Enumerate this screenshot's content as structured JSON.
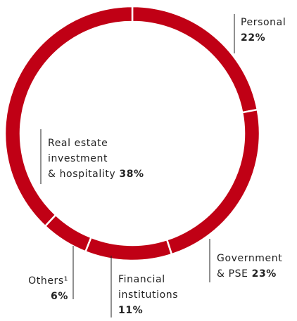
{
  "chart_data": {
    "type": "donut",
    "categories": [
      [
        "Personal"
      ],
      [
        "Government",
        "& PSE"
      ],
      [
        "Financial",
        "institutions"
      ],
      [
        "Others¹"
      ],
      [
        "Real estate",
        "investment",
        "& hospitality"
      ]
    ],
    "values": [
      22,
      23,
      11,
      6,
      38
    ],
    "value_labels": [
      "22%",
      "23%",
      "11%",
      "6%",
      "38%"
    ],
    "color": "#c00015"
  }
}
